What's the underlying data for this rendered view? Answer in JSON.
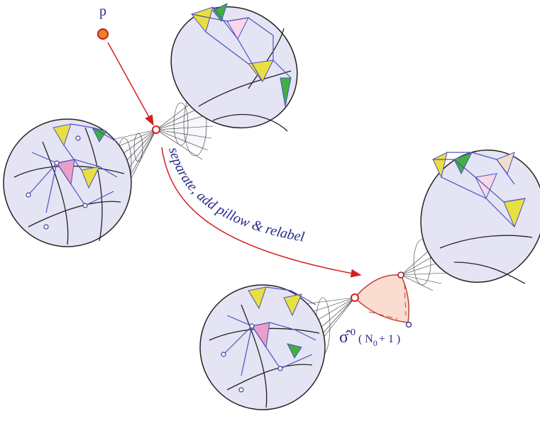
{
  "labels": {
    "point": "p",
    "arrow": "separate, add pillow & relabel",
    "pillow": {
      "base": "σ̂",
      "sup": "0",
      "arg": "( N",
      "sub": "0",
      "rest": "+ 1 )"
    }
  }
}
